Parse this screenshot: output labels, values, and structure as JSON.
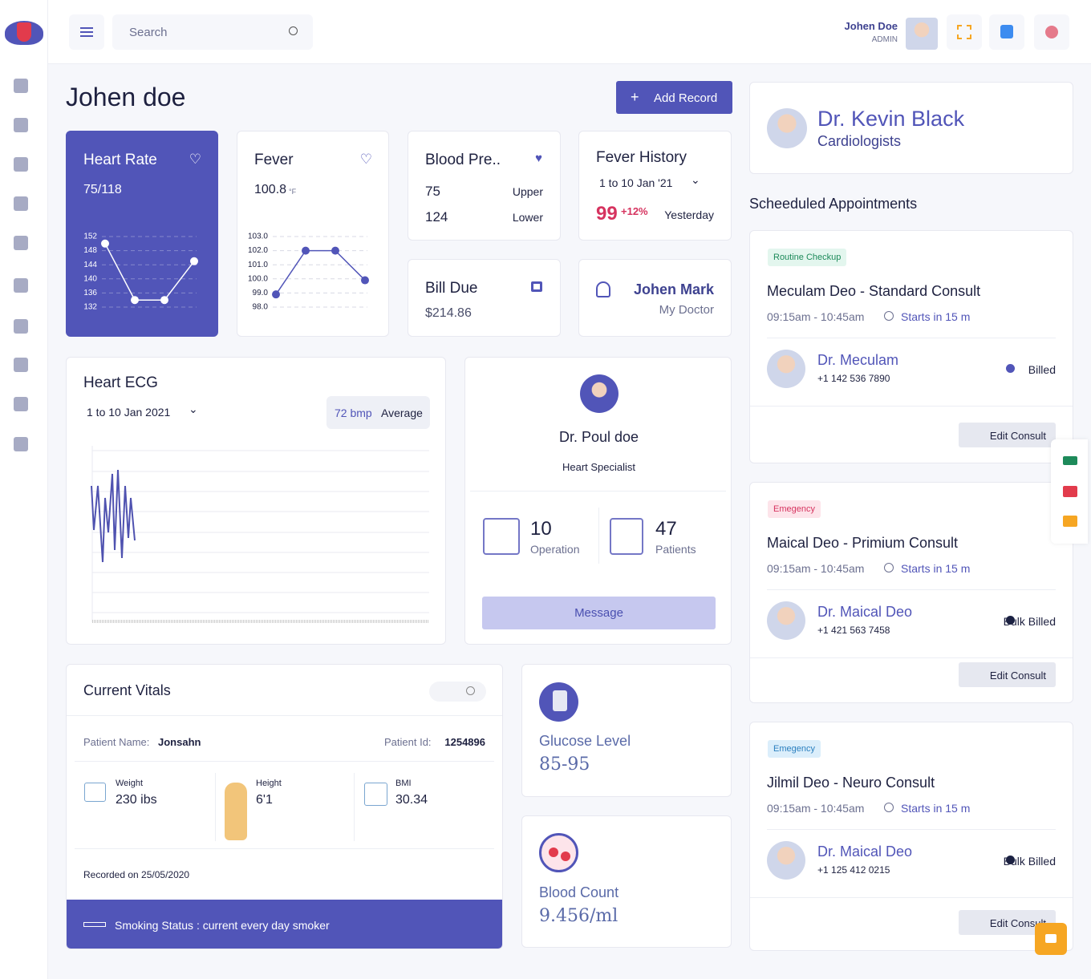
{
  "header": {
    "search_placeholder": "Search",
    "user_name": "Johen Doe",
    "user_role": "ADMIN"
  },
  "page_title": "Johen doe",
  "add_record": "Add Record",
  "heart_rate": {
    "title": "Heart Rate",
    "value": "75/118",
    "chart": {
      "ylim": [
        132,
        152
      ],
      "yticks": [
        132,
        136,
        140,
        144,
        148,
        152
      ],
      "values": [
        150,
        134,
        134,
        145
      ]
    }
  },
  "fever": {
    "title": "Fever",
    "value": "100.8",
    "unit": "°F",
    "chart": {
      "ylim": [
        98,
        103
      ],
      "yticks": [
        {
          "value": 98,
          "label": "98.0"
        },
        {
          "value": 99,
          "label": "99.0"
        },
        {
          "value": 100,
          "label": "100.0"
        },
        {
          "value": 101,
          "label": "101.0"
        },
        {
          "value": 102,
          "label": "102.0"
        },
        {
          "value": 103,
          "label": "103.0"
        }
      ],
      "values": [
        98.9,
        102,
        102,
        99.9
      ]
    }
  },
  "blood_pressure": {
    "title": "Blood Pre..",
    "upper": "75",
    "upper_label": "Upper",
    "lower": "124",
    "lower_label": "Lower"
  },
  "fever_history": {
    "title": "Fever History",
    "range": "1 to 10 Jan '21",
    "value": "99",
    "change": "+12%",
    "period": "Yesterday"
  },
  "bill_due": {
    "title": "Bill Due",
    "amount": "$214.86"
  },
  "my_doctor": {
    "name": "Johen Mark",
    "label": "My Doctor"
  },
  "ecg": {
    "title": "Heart ECG",
    "range": "1 to 10 Jan 2021",
    "bpm": "72 bmp",
    "average": "Average"
  },
  "doctor_card": {
    "name": "Dr. Poul doe",
    "specialty": "Heart Specialist",
    "operations": "10",
    "operations_label": "Operation",
    "patients": "47",
    "patients_label": "Patients",
    "message": "Message"
  },
  "vitals": {
    "title": "Current Vitals",
    "patient_name_label": "Patient Name:",
    "patient_name": "Jonsahn",
    "patient_id_label": "Patient Id:",
    "patient_id": "1254896",
    "weight_label": "Weight",
    "weight": "230 ibs",
    "height_label": "Height",
    "height": "6'1",
    "bmi_label": "BMI",
    "bmi": "30.34",
    "recorded": "Recorded on 25/05/2020",
    "smoking": "Smoking Status : current every day smoker"
  },
  "glucose": {
    "title": "Glucose Level",
    "value": "85-95"
  },
  "blood_count": {
    "title": "Blood Count",
    "value": "9.456/ml"
  },
  "cardiologist": {
    "name": "Dr. Kevin Black",
    "specialty": "Cardiologists"
  },
  "appointments_title": "Scheeduled Appointments",
  "appointments": [
    {
      "tag": "Routine Checkup",
      "title": "Meculam Deo - Standard Consult",
      "time": "09:15am - 10:45am",
      "starts": "Starts in 15 m",
      "doctor": "Dr. Meculam",
      "phone": "+1 142 536 7890",
      "status": "Billed",
      "button": "Edit Consult"
    },
    {
      "tag": "Emegency",
      "title": "Maical Deo - Primium Consult",
      "time": "09:15am - 10:45am",
      "starts": "Starts in 15 m",
      "doctor": "Dr. Maical Deo",
      "phone": "+1 421 563 7458",
      "status": "Bulk Billed",
      "button": "Edit Consult"
    },
    {
      "tag": "Emegency",
      "title": "Jilmil Deo - Neuro Consult",
      "time": "09:15am - 10:45am",
      "starts": "Starts in 15 m",
      "doctor": "Dr. Maical Deo",
      "phone": "+1 125 412 0215",
      "status": "Bulk Billed",
      "button": "Edit Consult"
    }
  ]
}
